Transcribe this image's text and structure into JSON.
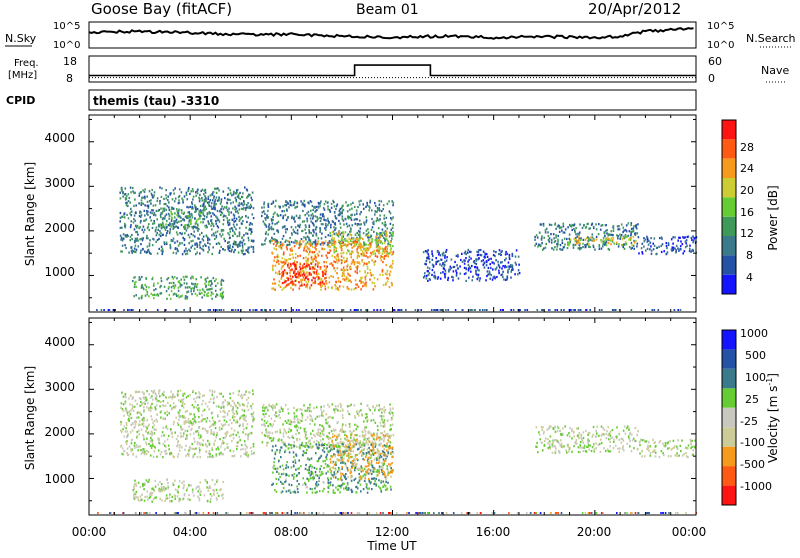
{
  "header": {
    "station": "Goose Bay (fitACF)",
    "beam": "Beam 01",
    "date": "20/Apr/2012"
  },
  "noise_panel": {
    "left_label": "N.Sky",
    "left_ticks": [
      "10^5",
      "10^0"
    ],
    "right_ticks": [
      "10^5",
      "10^0"
    ],
    "right_label": "N.Search"
  },
  "freq_panel": {
    "left_label_line1": "Freq.",
    "left_label_line2": "[MHz]",
    "left_ticks": [
      "18",
      "8"
    ],
    "right_ticks": [
      "60",
      "0"
    ],
    "right_label": "Nave"
  },
  "cpid_panel": {
    "left_label": "CPID",
    "mode": "themis (tau) -3310"
  },
  "axes": {
    "ylabel": "Slant Range [km]",
    "xlabel": "Time UT",
    "y_ticks": [
      "1000",
      "2000",
      "3000",
      "4000"
    ],
    "x_ticks": [
      "00:00",
      "04:00",
      "08:00",
      "12:00",
      "16:00",
      "20:00",
      "00:00"
    ]
  },
  "colors": {
    "power": [
      "#1414ff",
      "#2452a6",
      "#3a7a8a",
      "#3f9a5a",
      "#66cc33",
      "#cccc33",
      "#f59a1a",
      "#ff5a14",
      "#ff1414"
    ],
    "velocity": [
      "#ff1414",
      "#ff5a14",
      "#f59a1a",
      "#cccc99",
      "#c8c8c0",
      "#66cc33",
      "#3a7a8a",
      "#2452a6",
      "#1414ff"
    ]
  },
  "power_colorbar": {
    "label": "Power [dB]",
    "ticks": [
      "4",
      "8",
      "12",
      "16",
      "20",
      "24",
      "28"
    ]
  },
  "velocity_colorbar": {
    "label": "Velocity [m s",
    "label_sup": "-1",
    "label_end": "]",
    "ticks": [
      "-1000",
      "-500",
      "-100",
      "-25",
      "25",
      "100",
      "500",
      "1000"
    ]
  },
  "chart_data": [
    {
      "type": "heatmap",
      "title": "",
      "xlabel": "Time UT",
      "ylabel": "Slant Range [km]",
      "xlim": [
        0,
        24
      ],
      "ylim": [
        180,
        4600
      ],
      "colorbar": "Power [dB]",
      "clim": [
        0,
        30
      ],
      "regions": [
        {
          "t": [
            1.2,
            6.5
          ],
          "r": [
            1500,
            3000
          ],
          "level": 2
        },
        {
          "t": [
            2.7,
            4.6
          ],
          "r": [
            2100,
            2500
          ],
          "level": 3
        },
        {
          "t": [
            6.8,
            12.0
          ],
          "r": [
            1700,
            2700
          ],
          "level": 2
        },
        {
          "t": [
            7.2,
            12.0
          ],
          "r": [
            700,
            1800
          ],
          "level": 6
        },
        {
          "t": [
            7.6,
            9.4
          ],
          "r": [
            800,
            1300
          ],
          "level": 8
        },
        {
          "t": [
            9.5,
            12.0
          ],
          "r": [
            1500,
            2000
          ],
          "level": 5
        },
        {
          "t": [
            1.7,
            5.3
          ],
          "r": [
            500,
            1000
          ],
          "level": 3
        },
        {
          "t": [
            13.2,
            17.0
          ],
          "r": [
            900,
            1600
          ],
          "level": 1
        },
        {
          "t": [
            17.6,
            21.7
          ],
          "r": [
            1600,
            2200
          ],
          "level": 2
        },
        {
          "t": [
            18.9,
            21.6
          ],
          "r": [
            1700,
            1900
          ],
          "level": 5
        },
        {
          "t": [
            21.7,
            24.0
          ],
          "r": [
            1500,
            1900
          ],
          "level": 1
        }
      ]
    },
    {
      "type": "heatmap",
      "title": "",
      "xlabel": "Time UT",
      "ylabel": "Slant Range [km]",
      "xlim": [
        0,
        24
      ],
      "ylim": [
        180,
        4600
      ],
      "colorbar": "Velocity [m s-1]",
      "clim": [
        -1000,
        1000
      ],
      "regions": [
        {
          "t": [
            1.2,
            6.5
          ],
          "r": [
            1500,
            3000
          ],
          "velocity": 0
        },
        {
          "t": [
            6.8,
            12.0
          ],
          "r": [
            1700,
            2700
          ],
          "velocity": 0
        },
        {
          "t": [
            7.2,
            12.0
          ],
          "r": [
            700,
            1800
          ],
          "velocity": 100
        },
        {
          "t": [
            9.5,
            12.0
          ],
          "r": [
            1000,
            2000
          ],
          "velocity": -100
        },
        {
          "t": [
            1.7,
            5.3
          ],
          "r": [
            500,
            1000
          ],
          "velocity": 0
        },
        {
          "t": [
            17.6,
            21.7
          ],
          "r": [
            1600,
            2200
          ],
          "velocity": 0
        },
        {
          "t": [
            21.7,
            24.0
          ],
          "r": [
            1500,
            1900
          ],
          "velocity": 0
        }
      ]
    },
    {
      "type": "line",
      "title": "",
      "xlim": [
        0,
        24
      ],
      "series": [
        {
          "name": "N.Sky",
          "x": [
            0,
            2,
            6,
            8,
            10,
            12,
            14,
            16,
            18,
            20,
            21,
            22,
            24
          ],
          "y": [
            3.0,
            3.2,
            2.6,
            2.6,
            2.3,
            2.0,
            2.3,
            2.0,
            2.2,
            2.0,
            2.2,
            3.2,
            3.8
          ]
        },
        {
          "name": "Freq.",
          "x": [
            0,
            10.5,
            10.5,
            13.5,
            13.5,
            24
          ],
          "y": [
            10.5,
            10.5,
            14.5,
            14.5,
            10.5,
            10.5
          ]
        },
        {
          "name": "Nave",
          "x": [
            0,
            24
          ],
          "y": [
            10,
            10
          ]
        }
      ]
    }
  ]
}
